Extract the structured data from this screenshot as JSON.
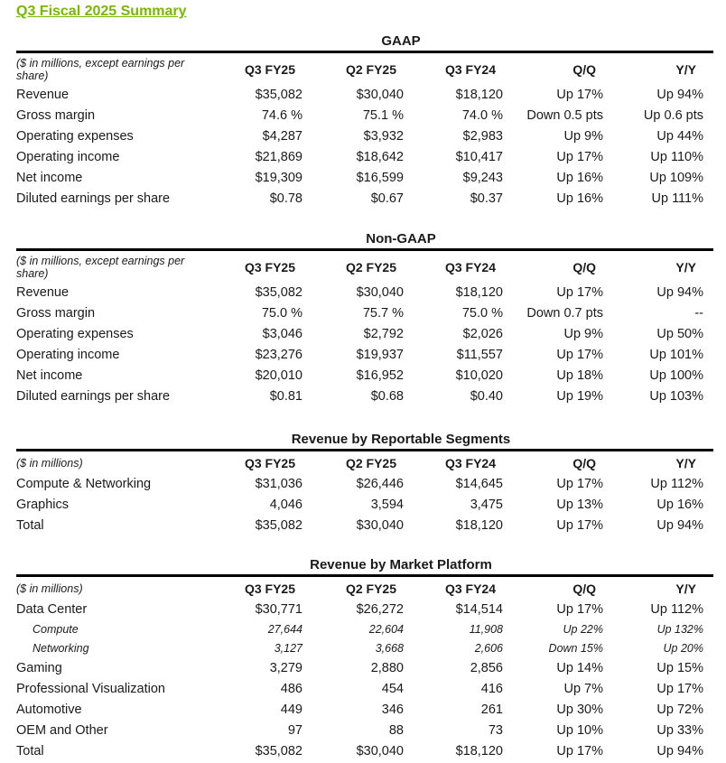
{
  "title": "Q3 Fiscal 2025 Summary",
  "columns": [
    "Q3 FY25",
    "Q2 FY25",
    "Q3 FY24",
    "Q/Q",
    "Y/Y"
  ],
  "sections": [
    {
      "title": "GAAP",
      "unit_note": "($ in millions, except earnings per share)",
      "rows": [
        {
          "label": "Revenue",
          "values": [
            "$35,082",
            "$30,040",
            "$18,120",
            "Up 17%",
            "Up 94%"
          ]
        },
        {
          "label": "Gross margin",
          "values": [
            "74.6 %",
            "75.1 %",
            "74.0 %",
            "Down 0.5 pts",
            "Up 0.6 pts"
          ]
        },
        {
          "label": "Operating expenses",
          "values": [
            "$4,287",
            "$3,932",
            "$2,983",
            "Up 9%",
            "Up 44%"
          ]
        },
        {
          "label": "Operating income",
          "values": [
            "$21,869",
            "$18,642",
            "$10,417",
            "Up 17%",
            "Up 110%"
          ]
        },
        {
          "label": "Net income",
          "values": [
            "$19,309",
            "$16,599",
            "$9,243",
            "Up 16%",
            "Up 109%"
          ]
        },
        {
          "label": "Diluted earnings per share",
          "values": [
            "$0.78",
            "$0.67",
            "$0.37",
            "Up 16%",
            "Up 111%"
          ]
        }
      ]
    },
    {
      "title": "Non-GAAP",
      "unit_note": "($ in millions, except earnings per share)",
      "rows": [
        {
          "label": "Revenue",
          "values": [
            "$35,082",
            "$30,040",
            "$18,120",
            "Up 17%",
            "Up 94%"
          ]
        },
        {
          "label": "Gross margin",
          "values": [
            "75.0 %",
            "75.7 %",
            "75.0 %",
            "Down 0.7 pts",
            "--"
          ]
        },
        {
          "label": "Operating expenses",
          "values": [
            "$3,046",
            "$2,792",
            "$2,026",
            "Up 9%",
            "Up 50%"
          ]
        },
        {
          "label": "Operating income",
          "values": [
            "$23,276",
            "$19,937",
            "$11,557",
            "Up 17%",
            "Up 101%"
          ]
        },
        {
          "label": "Net income",
          "values": [
            "$20,010",
            "$16,952",
            "$10,020",
            "Up 18%",
            "Up 100%"
          ]
        },
        {
          "label": "Diluted earnings per share",
          "values": [
            "$0.81",
            "$0.68",
            "$0.40",
            "Up 19%",
            "Up 103%"
          ]
        }
      ]
    },
    {
      "title": "Revenue by Reportable Segments",
      "unit_note": "($ in millions)",
      "rows": [
        {
          "label": "Compute & Networking",
          "values": [
            "$31,036",
            "$26,446",
            "$14,645",
            "Up 17%",
            "Up 112%"
          ]
        },
        {
          "label": "Graphics",
          "values": [
            "4,046",
            "3,594",
            "3,475",
            "Up 13%",
            "Up 16%"
          ]
        },
        {
          "label": "Total",
          "values": [
            "$35,082",
            "$30,040",
            "$18,120",
            "Up 17%",
            "Up 94%"
          ]
        }
      ]
    },
    {
      "title": "Revenue by Market Platform",
      "unit_note": "($ in millions)",
      "rows": [
        {
          "label": "Data Center",
          "values": [
            "$30,771",
            "$26,272",
            "$14,514",
            "Up 17%",
            "Up 112%"
          ]
        },
        {
          "label": "Compute",
          "sub": true,
          "values": [
            "27,644",
            "22,604",
            "11,908",
            "Up 22%",
            "Up 132%"
          ]
        },
        {
          "label": "Networking",
          "sub": true,
          "values": [
            "3,127",
            "3,668",
            "2,606",
            "Down 15%",
            "Up 20%"
          ]
        },
        {
          "label": "Gaming",
          "values": [
            "3,279",
            "2,880",
            "2,856",
            "Up 14%",
            "Up 15%"
          ]
        },
        {
          "label": "Professional Visualization",
          "values": [
            "486",
            "454",
            "416",
            "Up 7%",
            "Up 17%"
          ]
        },
        {
          "label": "Automotive",
          "values": [
            "449",
            "346",
            "261",
            "Up 30%",
            "Up 72%"
          ]
        },
        {
          "label": "OEM and Other",
          "values": [
            "97",
            "88",
            "73",
            "Up 10%",
            "Up 33%"
          ]
        },
        {
          "label": "Total",
          "values": [
            "$35,082",
            "$30,040",
            "$18,120",
            "Up 17%",
            "Up 94%"
          ]
        }
      ]
    }
  ]
}
